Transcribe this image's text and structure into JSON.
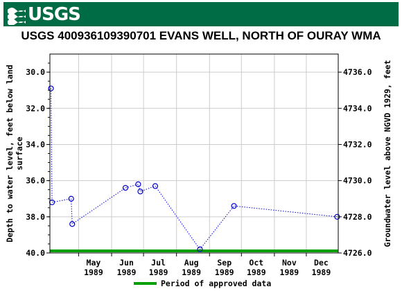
{
  "header": {
    "logo_text": "USGS",
    "background_color": "#006c45"
  },
  "chart_data": {
    "type": "scatter",
    "title": "USGS 400936109390701 EVANS WELL, NORTH OF OURAY WMA",
    "ylabel_left": "Depth to water level, feet below land surface",
    "ylabel_right": "Groundwater level above NGVD 1929, feet",
    "y_left_range": [
      40.0,
      29.0
    ],
    "y_left_ticks": [
      "30.0",
      "32.0",
      "34.0",
      "36.0",
      "38.0",
      "40.0"
    ],
    "y_right_ticks": [
      "4736.0",
      "4734.0",
      "4732.0",
      "4730.0",
      "4728.0",
      "4726.0"
    ],
    "x_range": [
      "1989-04-04",
      "1989-12-31"
    ],
    "x_ticks": [
      {
        "label": "May",
        "year": "1989",
        "date": "1989-05-01"
      },
      {
        "label": "Jun",
        "year": "1989",
        "date": "1989-06-01"
      },
      {
        "label": "Jul",
        "year": "1989",
        "date": "1989-07-01"
      },
      {
        "label": "Aug",
        "year": "1989",
        "date": "1989-08-01"
      },
      {
        "label": "Sep",
        "year": "1989",
        "date": "1989-09-01"
      },
      {
        "label": "Oct",
        "year": "1989",
        "date": "1989-10-01"
      },
      {
        "label": "Nov",
        "year": "1989",
        "date": "1989-11-01"
      },
      {
        "label": "Dec",
        "year": "1989",
        "date": "1989-12-01"
      }
    ],
    "series": [
      {
        "name": "Depth to water level",
        "color": "#0000cc",
        "line_style": "dotted",
        "marker": "open-circle",
        "points": [
          {
            "x": "1989-04-05",
            "y": 30.9
          },
          {
            "x": "1989-04-06",
            "y": 37.2
          },
          {
            "x": "1989-04-24",
            "y": 37.0
          },
          {
            "x": "1989-04-25",
            "y": 38.4
          },
          {
            "x": "1989-06-14",
            "y": 36.4
          },
          {
            "x": "1989-06-26",
            "y": 36.2
          },
          {
            "x": "1989-06-28",
            "y": 36.6
          },
          {
            "x": "1989-07-12",
            "y": 36.3
          },
          {
            "x": "1989-08-23",
            "y": 39.8
          },
          {
            "x": "1989-09-24",
            "y": 37.4
          },
          {
            "x": "1989-12-30",
            "y": 38.0
          }
        ]
      }
    ],
    "approved_period": {
      "start": "1989-04-04",
      "end": "1989-12-31",
      "color": "#00a000"
    },
    "legend": {
      "label": "Period of approved data",
      "position": "bottom"
    },
    "grid": true
  }
}
